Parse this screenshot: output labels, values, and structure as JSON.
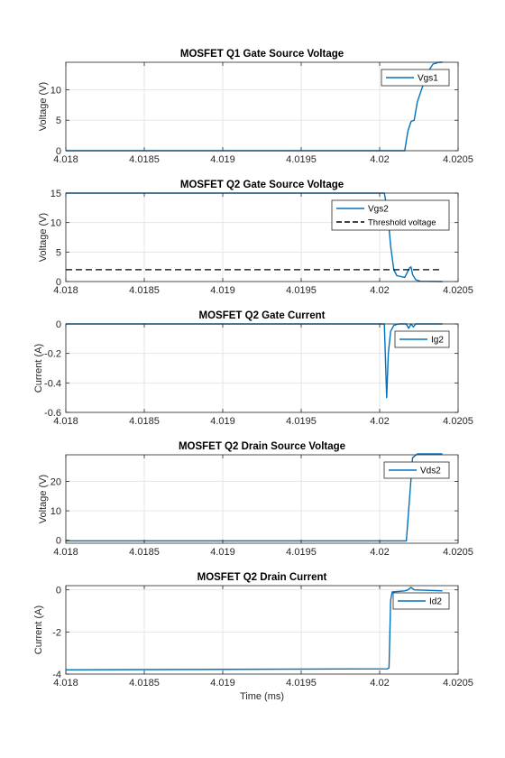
{
  "colors": {
    "series": "#0072bd",
    "threshold": "#000000",
    "grid": "#e6e6e6",
    "axis": "#262626"
  },
  "chart_data": [
    {
      "type": "line",
      "title": "MOSFET Q1 Gate Source Voltage",
      "xlabel": "",
      "ylabel": "Voltage (V)",
      "xlim": [
        4.018,
        4.0205
      ],
      "ylim": [
        0,
        14.5
      ],
      "xticks": [
        4.018,
        4.0185,
        4.019,
        4.0195,
        4.02,
        4.0205
      ],
      "xtick_labels": [
        "4.018",
        "4.0185",
        "4.019",
        "4.0195",
        "4.02",
        "4.0205"
      ],
      "yticks": [
        0,
        5,
        10
      ],
      "ytick_labels": [
        "0",
        "5",
        "10"
      ],
      "grid": true,
      "legend_position": "top-right",
      "series": [
        {
          "name": "Vgs1",
          "style": "solid",
          "points": [
            [
              4.018,
              0
            ],
            [
              4.02016,
              0
            ],
            [
              4.02018,
              3.2
            ],
            [
              4.0202,
              4.8
            ],
            [
              4.02022,
              5.0
            ],
            [
              4.02024,
              8.0
            ],
            [
              4.02028,
              11.0
            ],
            [
              4.02031,
              13.0
            ],
            [
              4.02034,
              14.2
            ],
            [
              4.02038,
              14.5
            ],
            [
              4.0204,
              14.5
            ]
          ]
        }
      ]
    },
    {
      "type": "line",
      "title": "MOSFET Q2 Gate Source Voltage",
      "xlabel": "",
      "ylabel": "Voltage (V)",
      "xlim": [
        4.018,
        4.0205
      ],
      "ylim": [
        0,
        15
      ],
      "xticks": [
        4.018,
        4.0185,
        4.019,
        4.0195,
        4.02,
        4.0205
      ],
      "xtick_labels": [
        "4.018",
        "4.0185",
        "4.019",
        "4.0195",
        "4.02",
        "4.0205"
      ],
      "yticks": [
        0,
        5,
        10,
        15
      ],
      "ytick_labels": [
        "0",
        "5",
        "10",
        "15"
      ],
      "grid": true,
      "legend_position": "top-right",
      "series": [
        {
          "name": "Vgs2",
          "style": "solid",
          "points": [
            [
              4.018,
              15
            ],
            [
              4.02003,
              15
            ],
            [
              4.02005,
              12
            ],
            [
              4.02007,
              6
            ],
            [
              4.02009,
              2.0
            ],
            [
              4.02011,
              1.0
            ],
            [
              4.02016,
              0.7
            ],
            [
              4.02019,
              2.3
            ],
            [
              4.0202,
              2.5
            ],
            [
              4.02021,
              1.2
            ],
            [
              4.02023,
              0.3
            ],
            [
              4.02026,
              0.05
            ],
            [
              4.0204,
              0
            ]
          ]
        },
        {
          "name": "Threshold voltage",
          "style": "dashed",
          "points": [
            [
              4.018,
              2
            ],
            [
              4.0204,
              2
            ]
          ]
        }
      ]
    },
    {
      "type": "line",
      "title": "MOSFET Q2 Gate Current",
      "xlabel": "",
      "ylabel": "Current (A)",
      "xlim": [
        4.018,
        4.0205
      ],
      "ylim": [
        -0.6,
        0
      ],
      "xticks": [
        4.018,
        4.0185,
        4.019,
        4.0195,
        4.02,
        4.0205
      ],
      "xtick_labels": [
        "4.018",
        "4.0185",
        "4.019",
        "4.0195",
        "4.02",
        "4.0205"
      ],
      "yticks": [
        -0.6,
        -0.4,
        -0.2,
        0
      ],
      "ytick_labels": [
        "-0.6",
        "-0.4",
        "-0.2",
        "0"
      ],
      "grid": true,
      "legend_position": "top-right",
      "series": [
        {
          "name": "Ig2",
          "style": "solid",
          "points": [
            [
              4.018,
              0
            ],
            [
              4.02003,
              0
            ],
            [
              4.020045,
              -0.5
            ],
            [
              4.020055,
              -0.2
            ],
            [
              4.02007,
              -0.05
            ],
            [
              4.02009,
              -0.01
            ],
            [
              4.02012,
              0
            ],
            [
              4.02017,
              0
            ],
            [
              4.020185,
              -0.03
            ],
            [
              4.0202,
              0
            ],
            [
              4.020215,
              -0.02
            ],
            [
              4.02023,
              0
            ],
            [
              4.0204,
              0
            ]
          ]
        }
      ]
    },
    {
      "type": "line",
      "title": "MOSFET Q2 Drain Source Voltage",
      "xlabel": "",
      "ylabel": "Voltage (V)",
      "xlim": [
        4.018,
        4.0205
      ],
      "ylim": [
        -1,
        29
      ],
      "xticks": [
        4.018,
        4.0185,
        4.019,
        4.0195,
        4.02,
        4.0205
      ],
      "xtick_labels": [
        "4.018",
        "4.0185",
        "4.019",
        "4.0195",
        "4.02",
        "4.0205"
      ],
      "yticks": [
        0,
        10,
        20
      ],
      "ytick_labels": [
        "0",
        "10",
        "20"
      ],
      "grid": true,
      "legend_position": "top-right",
      "series": [
        {
          "name": "Vds2",
          "style": "solid",
          "points": [
            [
              4.018,
              -0.2
            ],
            [
              4.02017,
              -0.2
            ],
            [
              4.02019,
              14
            ],
            [
              4.02021,
              28
            ],
            [
              4.02024,
              29.3
            ],
            [
              4.0204,
              29.3
            ]
          ]
        }
      ]
    },
    {
      "type": "line",
      "title": "MOSFET Q2 Drain Current",
      "xlabel": "Time (ms)",
      "ylabel": "Current (A)",
      "xlim": [
        4.018,
        4.0205
      ],
      "ylim": [
        -4,
        0.2
      ],
      "xticks": [
        4.018,
        4.0185,
        4.019,
        4.0195,
        4.02,
        4.0205
      ],
      "xtick_labels": [
        "4.018",
        "4.0185",
        "4.019",
        "4.0195",
        "4.02",
        "4.0205"
      ],
      "yticks": [
        -4,
        -2,
        0
      ],
      "ytick_labels": [
        "-4",
        "-2",
        "0"
      ],
      "grid": true,
      "legend_position": "top-right",
      "series": [
        {
          "name": "Id2",
          "style": "solid",
          "points": [
            [
              4.018,
              -3.8
            ],
            [
              4.02005,
              -3.75
            ],
            [
              4.02006,
              -3.7
            ],
            [
              4.02007,
              -0.5
            ],
            [
              4.02008,
              -0.1
            ],
            [
              4.02016,
              -0.05
            ],
            [
              4.02018,
              0
            ],
            [
              4.0202,
              0.12
            ],
            [
              4.02022,
              0
            ],
            [
              4.0204,
              -0.05
            ]
          ]
        }
      ]
    }
  ]
}
